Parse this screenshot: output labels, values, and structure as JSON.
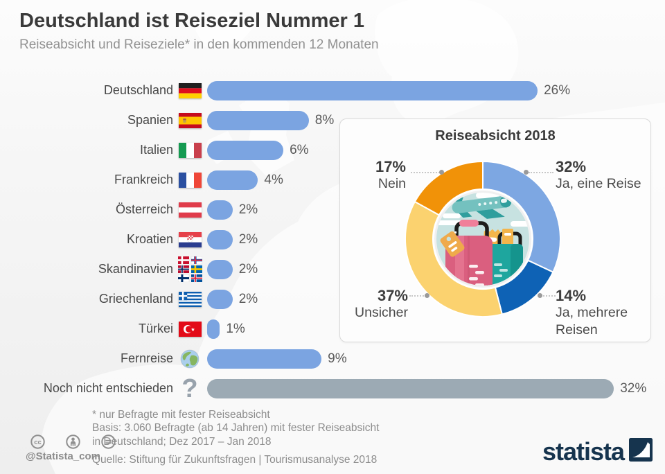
{
  "header": {
    "title": "Deutschland ist Reiseziel Nummer 1",
    "subtitle": "Reiseabsicht und Reiseziele* in den kommenden 12 Monaten"
  },
  "colors": {
    "bar_blue": "#7BA4E1",
    "bar_gray": "#9CAAB4",
    "donut_light_blue": "#7DA7E2",
    "donut_dark_blue": "#0E62B5",
    "donut_yellow": "#FBD26F",
    "donut_orange": "#F19208",
    "logo_navy": "#16344E"
  },
  "chart_data": [
    {
      "type": "bar",
      "title": "Reiseziele in den kommenden 12 Monaten",
      "orientation": "horizontal",
      "unit": "%",
      "xlim": [
        0,
        35
      ],
      "categories": [
        "Deutschland",
        "Spanien",
        "Italien",
        "Frankreich",
        "Österreich",
        "Kroatien",
        "Skandinavien",
        "Griechenland",
        "Türkei",
        "Fernreise",
        "Noch nicht entschieden"
      ],
      "values": [
        26,
        8,
        6,
        4,
        2,
        2,
        2,
        2,
        1,
        9,
        32
      ],
      "icons": [
        "flag-germany",
        "flag-spain",
        "flag-italy",
        "flag-france",
        "flag-austria",
        "flag-croatia",
        "flags-scandinavia",
        "flag-greece",
        "flag-turkey",
        "globe-icon",
        "question-mark-icon"
      ],
      "bar_styles": [
        "blue",
        "blue",
        "blue",
        "blue",
        "blue",
        "blue",
        "blue",
        "blue",
        "blue",
        "blue",
        "gray"
      ]
    },
    {
      "type": "donut",
      "title": "Reiseabsicht 2018",
      "segments": [
        {
          "label": "Ja, eine Reise",
          "value": 32,
          "pct": "32%",
          "color": "#7DA7E2"
        },
        {
          "label": "Ja, mehrere Reisen",
          "value": 14,
          "pct": "14%",
          "color": "#0E62B5"
        },
        {
          "label": "Unsicher",
          "value": 37,
          "pct": "37%",
          "color": "#FBD26F"
        },
        {
          "label": "Nein",
          "value": 17,
          "pct": "17%",
          "color": "#F19208"
        }
      ]
    }
  ],
  "footer": {
    "note": "* nur Befragte mit fester Reiseabsicht",
    "basis_line1": "Basis: 3.060 Befragte (ab 14 Jahren) mit fester Reiseabsicht",
    "basis_line2": "in Deutschland; Dez 2017 – Jan 2018",
    "source": "Quelle: Stiftung für Zukunftsfragen | Tourismusanalyse 2018"
  },
  "branding": {
    "handle": "@Statista_com",
    "logo_text": "statista",
    "license_icons": [
      "cc-icon",
      "attribution-icon",
      "no-derivatives-icon"
    ]
  }
}
